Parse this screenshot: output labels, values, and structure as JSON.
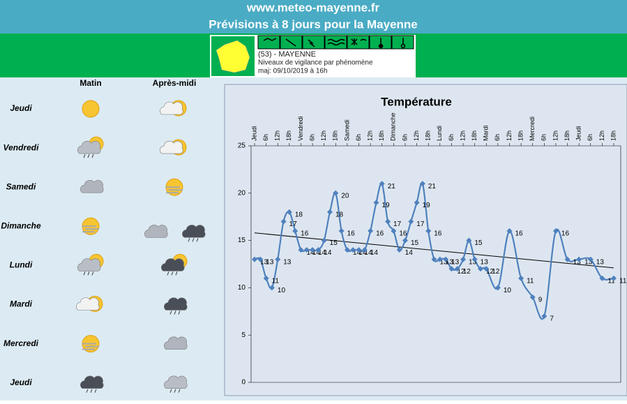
{
  "header": {
    "site": "www.meteo-mayenne.fr",
    "title": "Prévisions à 8 jours pour la Mayenne"
  },
  "vigilance": {
    "department": "(53) - MAYENNE",
    "caption": "Niveaux de vigilance par phénomène",
    "updated": "maj: 09/10/2019 à 16h"
  },
  "forecast": {
    "columns": [
      "Matin",
      "Après-midi"
    ],
    "days": [
      "Jeudi",
      "Vendredi",
      "Samedi",
      "Dimanche",
      "Lundi",
      "Mardi",
      "Mercredi",
      "Jeudi"
    ]
  },
  "chart_data": {
    "type": "line",
    "title": "Température",
    "xlim": [
      0,
      186
    ],
    "xticks": [
      {
        "value": 0,
        "label": "Jeudi"
      },
      {
        "value": 6,
        "label": "6h"
      },
      {
        "value": 12,
        "label": "12h"
      },
      {
        "value": 18,
        "label": "18h"
      },
      {
        "value": 24,
        "label": "Vendredi"
      },
      {
        "value": 30,
        "label": "6h"
      },
      {
        "value": 36,
        "label": "12h"
      },
      {
        "value": 42,
        "label": "18h"
      },
      {
        "value": 48,
        "label": "Samedi"
      },
      {
        "value": 54,
        "label": "6h"
      },
      {
        "value": 60,
        "label": "12h"
      },
      {
        "value": 66,
        "label": "18h"
      },
      {
        "value": 72,
        "label": "Dimanche"
      },
      {
        "value": 78,
        "label": "6h"
      },
      {
        "value": 84,
        "label": "12h"
      },
      {
        "value": 90,
        "label": "18h"
      },
      {
        "value": 96,
        "label": "Lundi"
      },
      {
        "value": 102,
        "label": "6h"
      },
      {
        "value": 108,
        "label": "12h"
      },
      {
        "value": 114,
        "label": "18h"
      },
      {
        "value": 120,
        "label": "Mardi"
      },
      {
        "value": 126,
        "label": "6h"
      },
      {
        "value": 132,
        "label": "12h"
      },
      {
        "value": 138,
        "label": "18h"
      },
      {
        "value": 144,
        "label": "Mercredi"
      },
      {
        "value": 150,
        "label": "6h"
      },
      {
        "value": 156,
        "label": "12h"
      },
      {
        "value": 162,
        "label": "18h"
      },
      {
        "value": 168,
        "label": "Jeudi"
      },
      {
        "value": 174,
        "label": "6h"
      },
      {
        "value": 180,
        "label": "12h"
      },
      {
        "value": 186,
        "label": "18h"
      }
    ],
    "ylim": [
      0,
      25
    ],
    "yticks": [
      0,
      5,
      10,
      15,
      20,
      25
    ],
    "series": [
      {
        "color": "#4f81bd",
        "x": [
          0,
          3,
          6,
          9,
          12,
          15,
          18,
          21,
          24,
          27,
          30,
          33,
          36,
          39,
          42,
          45,
          48,
          51,
          54,
          57,
          60,
          63,
          66,
          69,
          72,
          75,
          78,
          81,
          84,
          87,
          90,
          93,
          96,
          99,
          102,
          105,
          108,
          111,
          114,
          117,
          120,
          126,
          132,
          138,
          144,
          150,
          156,
          162,
          168,
          174,
          180,
          186
        ],
        "values": [
          13,
          13,
          11,
          10,
          13,
          17,
          18,
          16,
          14,
          14,
          14,
          14,
          15,
          18,
          20,
          16,
          14,
          14,
          14,
          14,
          16,
          19,
          21,
          17,
          16,
          14,
          15,
          17,
          19,
          21,
          16,
          13,
          13,
          13,
          12,
          12,
          13,
          15,
          13,
          12,
          12,
          10,
          16,
          11,
          9,
          7,
          16,
          13,
          13,
          13,
          11,
          11
        ]
      }
    ],
    "trend": {
      "color": "#000000",
      "x": [
        0,
        186
      ],
      "values": [
        15.8,
        12.1
      ]
    }
  }
}
